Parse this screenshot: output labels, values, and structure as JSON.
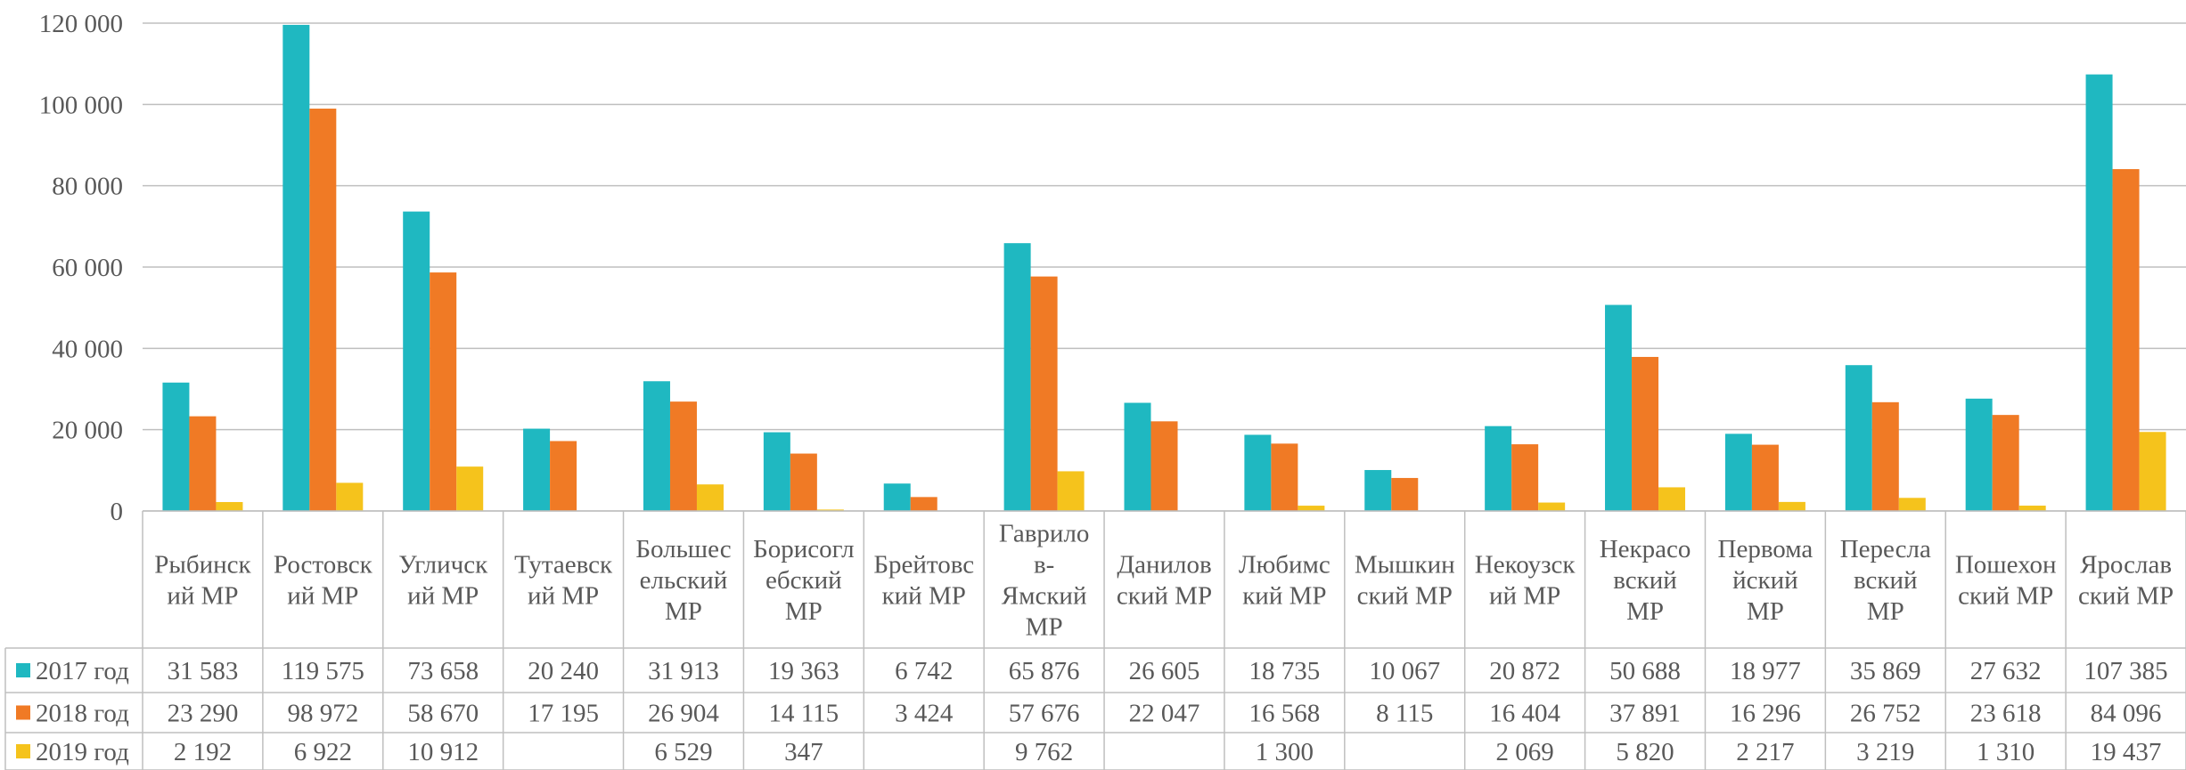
{
  "chart_data": {
    "type": "bar",
    "categories": [
      "Рыбинский МР",
      "Ростовский МР",
      "Угличский МР",
      "Тутаевский МР",
      "Большесельский МР",
      "Борисоглебский МР",
      "Брейтовский МР",
      "Гаврилов-Ямский МР",
      "Даниловский МР",
      "Любимский МР",
      "Мышкинский МР",
      "Некоузский МР",
      "Некрасовский МР",
      "Первомайский МР",
      "Переславский МР",
      "Пошехонский МР",
      "Ярославский МР"
    ],
    "category_lines": [
      [
        "Рыбинск",
        "ий МР"
      ],
      [
        "Ростовск",
        "ий МР"
      ],
      [
        "Угличск",
        "ий МР"
      ],
      [
        "Тутаевск",
        "ий МР"
      ],
      [
        "Большес",
        "ельский",
        "МР"
      ],
      [
        "Борисогл",
        "ебский",
        "МР"
      ],
      [
        "Брейтовс",
        "кий МР"
      ],
      [
        "Гаврило",
        "в-",
        "Ямский",
        "МР"
      ],
      [
        "Данилов",
        "ский МР"
      ],
      [
        "Любимс",
        "кий МР"
      ],
      [
        "Мышкин",
        "ский МР"
      ],
      [
        "Некоузск",
        "ий МР"
      ],
      [
        "Некрасо",
        "вский",
        "МР"
      ],
      [
        "Первома",
        "йский",
        "МР"
      ],
      [
        "Пересла",
        "вский",
        "МР"
      ],
      [
        "Пошехон",
        "ский МР"
      ],
      [
        "Ярослав",
        "ский МР"
      ]
    ],
    "series": [
      {
        "name": "2017 год",
        "color": "#1fb8c1",
        "values": [
          31583,
          119575,
          73658,
          20240,
          31913,
          19363,
          6742,
          65876,
          26605,
          18735,
          10067,
          20872,
          50688,
          18977,
          35869,
          27632,
          107385
        ],
        "labels": [
          "31 583",
          "119 575",
          "73 658",
          "20 240",
          "31 913",
          "19 363",
          "6 742",
          "65 876",
          "26 605",
          "18 735",
          "10 067",
          "20 872",
          "50 688",
          "18 977",
          "35 869",
          "27 632",
          "107 385"
        ]
      },
      {
        "name": "2018 год",
        "color": "#f07a25",
        "values": [
          23290,
          98972,
          58670,
          17195,
          26904,
          14115,
          3424,
          57676,
          22047,
          16568,
          8115,
          16404,
          37891,
          16296,
          26752,
          23618,
          84096
        ],
        "labels": [
          "23 290",
          "98 972",
          "58 670",
          "17 195",
          "26 904",
          "14 115",
          "3 424",
          "57 676",
          "22 047",
          "16 568",
          "8 115",
          "16 404",
          "37 891",
          "16 296",
          "26 752",
          "23 618",
          "84 096"
        ]
      },
      {
        "name": "2019 год",
        "color": "#f5c31c",
        "values": [
          2192,
          6922,
          10912,
          null,
          6529,
          347,
          null,
          9762,
          null,
          1300,
          null,
          2069,
          5820,
          2217,
          3219,
          1310,
          19437
        ],
        "labels": [
          "2 192",
          "6 922",
          "10 912",
          "",
          "6 529",
          "347",
          "",
          "9 762",
          "",
          "1 300",
          "",
          "2 069",
          "5 820",
          "2 217",
          "3 219",
          "1 310",
          "19 437"
        ]
      }
    ],
    "ylim": [
      0,
      120000
    ],
    "yticks": [
      0,
      20000,
      40000,
      60000,
      80000,
      100000,
      120000
    ],
    "ytick_labels": [
      "0",
      "20 000",
      "40 000",
      "60 000",
      "80 000",
      "100 000",
      "120 000"
    ],
    "grid": true,
    "legend": "data-table",
    "title": "",
    "xlabel": "",
    "ylabel": ""
  }
}
